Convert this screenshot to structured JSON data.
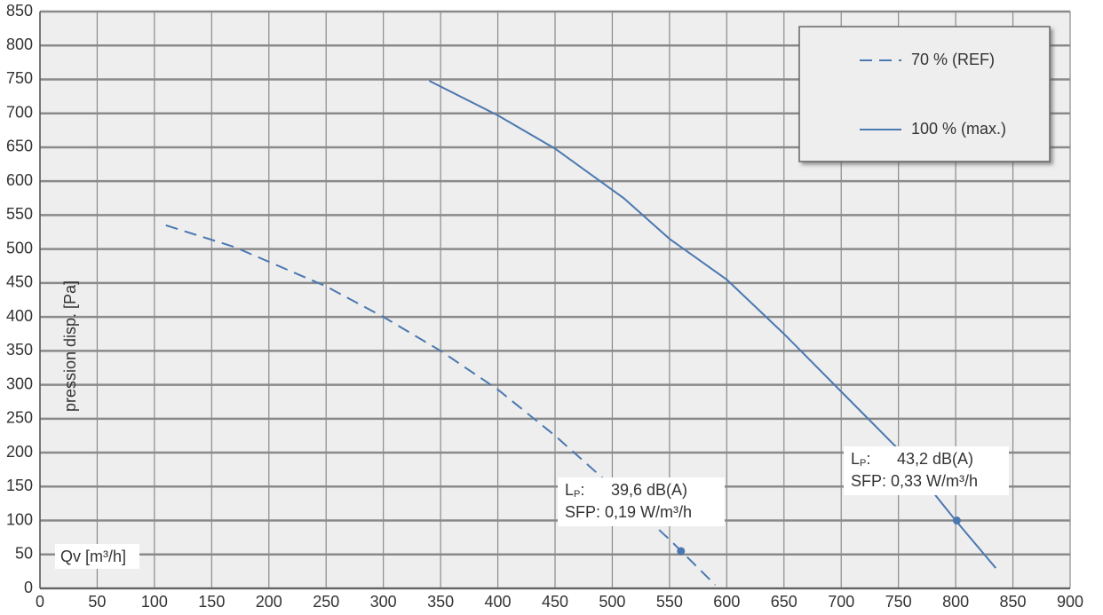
{
  "chart_data": {
    "type": "line",
    "x_label": "Qv [m³/h]",
    "y_label": "pression disp. [Pa]",
    "xlim": [
      0,
      900
    ],
    "ylim": [
      0,
      850
    ],
    "xticks": [
      0,
      50,
      100,
      150,
      200,
      250,
      300,
      350,
      400,
      450,
      500,
      550,
      600,
      650,
      700,
      750,
      800,
      850,
      900
    ],
    "yticks": [
      0,
      50,
      100,
      150,
      200,
      250,
      300,
      350,
      400,
      450,
      500,
      550,
      600,
      650,
      700,
      750,
      800,
      850
    ],
    "grid": true,
    "legend": "top-right",
    "series": [
      {
        "name": "70 % (REF)",
        "color": "#4b78b0",
        "dash": true,
        "x": [
          110,
          170,
          250,
          300,
          350,
          400,
          450,
          500,
          550,
          590
        ],
        "values": [
          535,
          503,
          445,
          400,
          350,
          293,
          225,
          150,
          72,
          5
        ]
      },
      {
        "name": "100 % (max.)",
        "color": "#4b78b0",
        "dash": false,
        "x": [
          340,
          400,
          450,
          510,
          550,
          600,
          650,
          700,
          750,
          800,
          835
        ],
        "values": [
          748,
          697,
          648,
          575,
          515,
          455,
          375,
          290,
          205,
          100,
          30
        ]
      }
    ],
    "annotations": [
      {
        "symbol": "L",
        "subscript": "P",
        "sep": ":",
        "noise": "39,6 dB(A)",
        "sfp": "SFP: 0,19 W/m³/h",
        "point": {
          "x": 560,
          "y": 55
        }
      },
      {
        "symbol": "L",
        "subscript": "P",
        "sep": ":",
        "noise": "43,2 dB(A)",
        "sfp": "SFP: 0,33 W/m³/h",
        "point": {
          "x": 801,
          "y": 100
        }
      }
    ]
  }
}
